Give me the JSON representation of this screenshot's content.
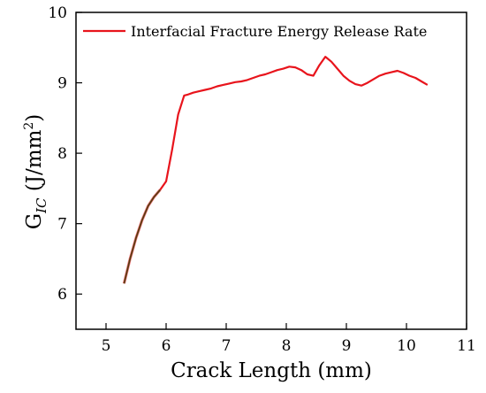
{
  "chart_data": {
    "type": "line",
    "xlabel": "Crack Length (mm)",
    "ylabel_main": "G",
    "ylabel_sub": "IC",
    "ylabel_units_pre": " (J/mm",
    "ylabel_units_sup": "2",
    "ylabel_units_post": ")",
    "xlim": [
      4.5,
      11
    ],
    "ylim": [
      5.5,
      10
    ],
    "x_ticks": [
      5,
      6,
      7,
      8,
      9,
      10,
      11
    ],
    "x_tick_labels": [
      "5",
      "6",
      "7",
      "8",
      "9",
      "10",
      "11"
    ],
    "y_ticks": [
      6,
      7,
      8,
      9,
      10
    ],
    "y_tick_labels": [
      "6",
      "7",
      "8",
      "9",
      "10"
    ],
    "grid": false,
    "legend_position": "top",
    "series": [
      {
        "name": "Interfacial Fracture Energy Release Rate",
        "color": "#e8141c",
        "lower_color": "#5a3a10",
        "x": [
          5.3,
          5.4,
          5.5,
          5.6,
          5.7,
          5.8,
          5.9,
          6.0,
          6.1,
          6.2,
          6.3,
          6.35,
          6.45,
          6.55,
          6.65,
          6.75,
          6.85,
          6.95,
          7.05,
          7.15,
          7.25,
          7.35,
          7.45,
          7.55,
          7.65,
          7.75,
          7.85,
          7.95,
          8.05,
          8.15,
          8.25,
          8.35,
          8.45,
          8.55,
          8.65,
          8.75,
          8.85,
          8.95,
          9.05,
          9.15,
          9.25,
          9.35,
          9.45,
          9.55,
          9.65,
          9.75,
          9.85,
          9.95,
          10.05,
          10.15,
          10.25,
          10.35
        ],
        "y": [
          6.15,
          6.5,
          6.8,
          7.05,
          7.25,
          7.38,
          7.48,
          7.6,
          8.05,
          8.55,
          8.82,
          8.83,
          8.86,
          8.88,
          8.9,
          8.92,
          8.95,
          8.97,
          8.99,
          9.01,
          9.02,
          9.04,
          9.07,
          9.1,
          9.12,
          9.15,
          9.18,
          9.2,
          9.23,
          9.22,
          9.18,
          9.12,
          9.1,
          9.25,
          9.37,
          9.3,
          9.2,
          9.1,
          9.03,
          8.98,
          8.96,
          9.0,
          9.05,
          9.1,
          9.13,
          9.15,
          9.17,
          9.14,
          9.1,
          9.07,
          9.02,
          8.97
        ]
      }
    ]
  }
}
